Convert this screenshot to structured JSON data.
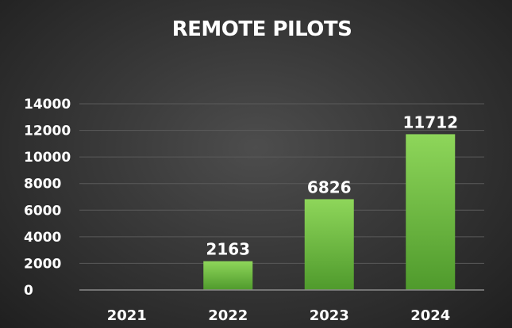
{
  "chart_data": {
    "type": "bar",
    "title": "REMOTE PILOTS",
    "categories": [
      "2021",
      "2022",
      "2023",
      "2024"
    ],
    "values": [
      0,
      2163,
      6826,
      11712
    ],
    "data_labels": [
      "",
      "2163",
      "6826",
      "11712"
    ],
    "y_ticks": [
      0,
      2000,
      4000,
      6000,
      8000,
      10000,
      12000,
      14000
    ],
    "ylim": [
      0,
      14000
    ],
    "xlabel": "",
    "ylabel": "",
    "grid": true,
    "legend": "none",
    "colors": {
      "bar_top": "#8ed65a",
      "bar_bottom": "#4f9a2c",
      "background": "#333333",
      "text": "#ffffff"
    }
  }
}
